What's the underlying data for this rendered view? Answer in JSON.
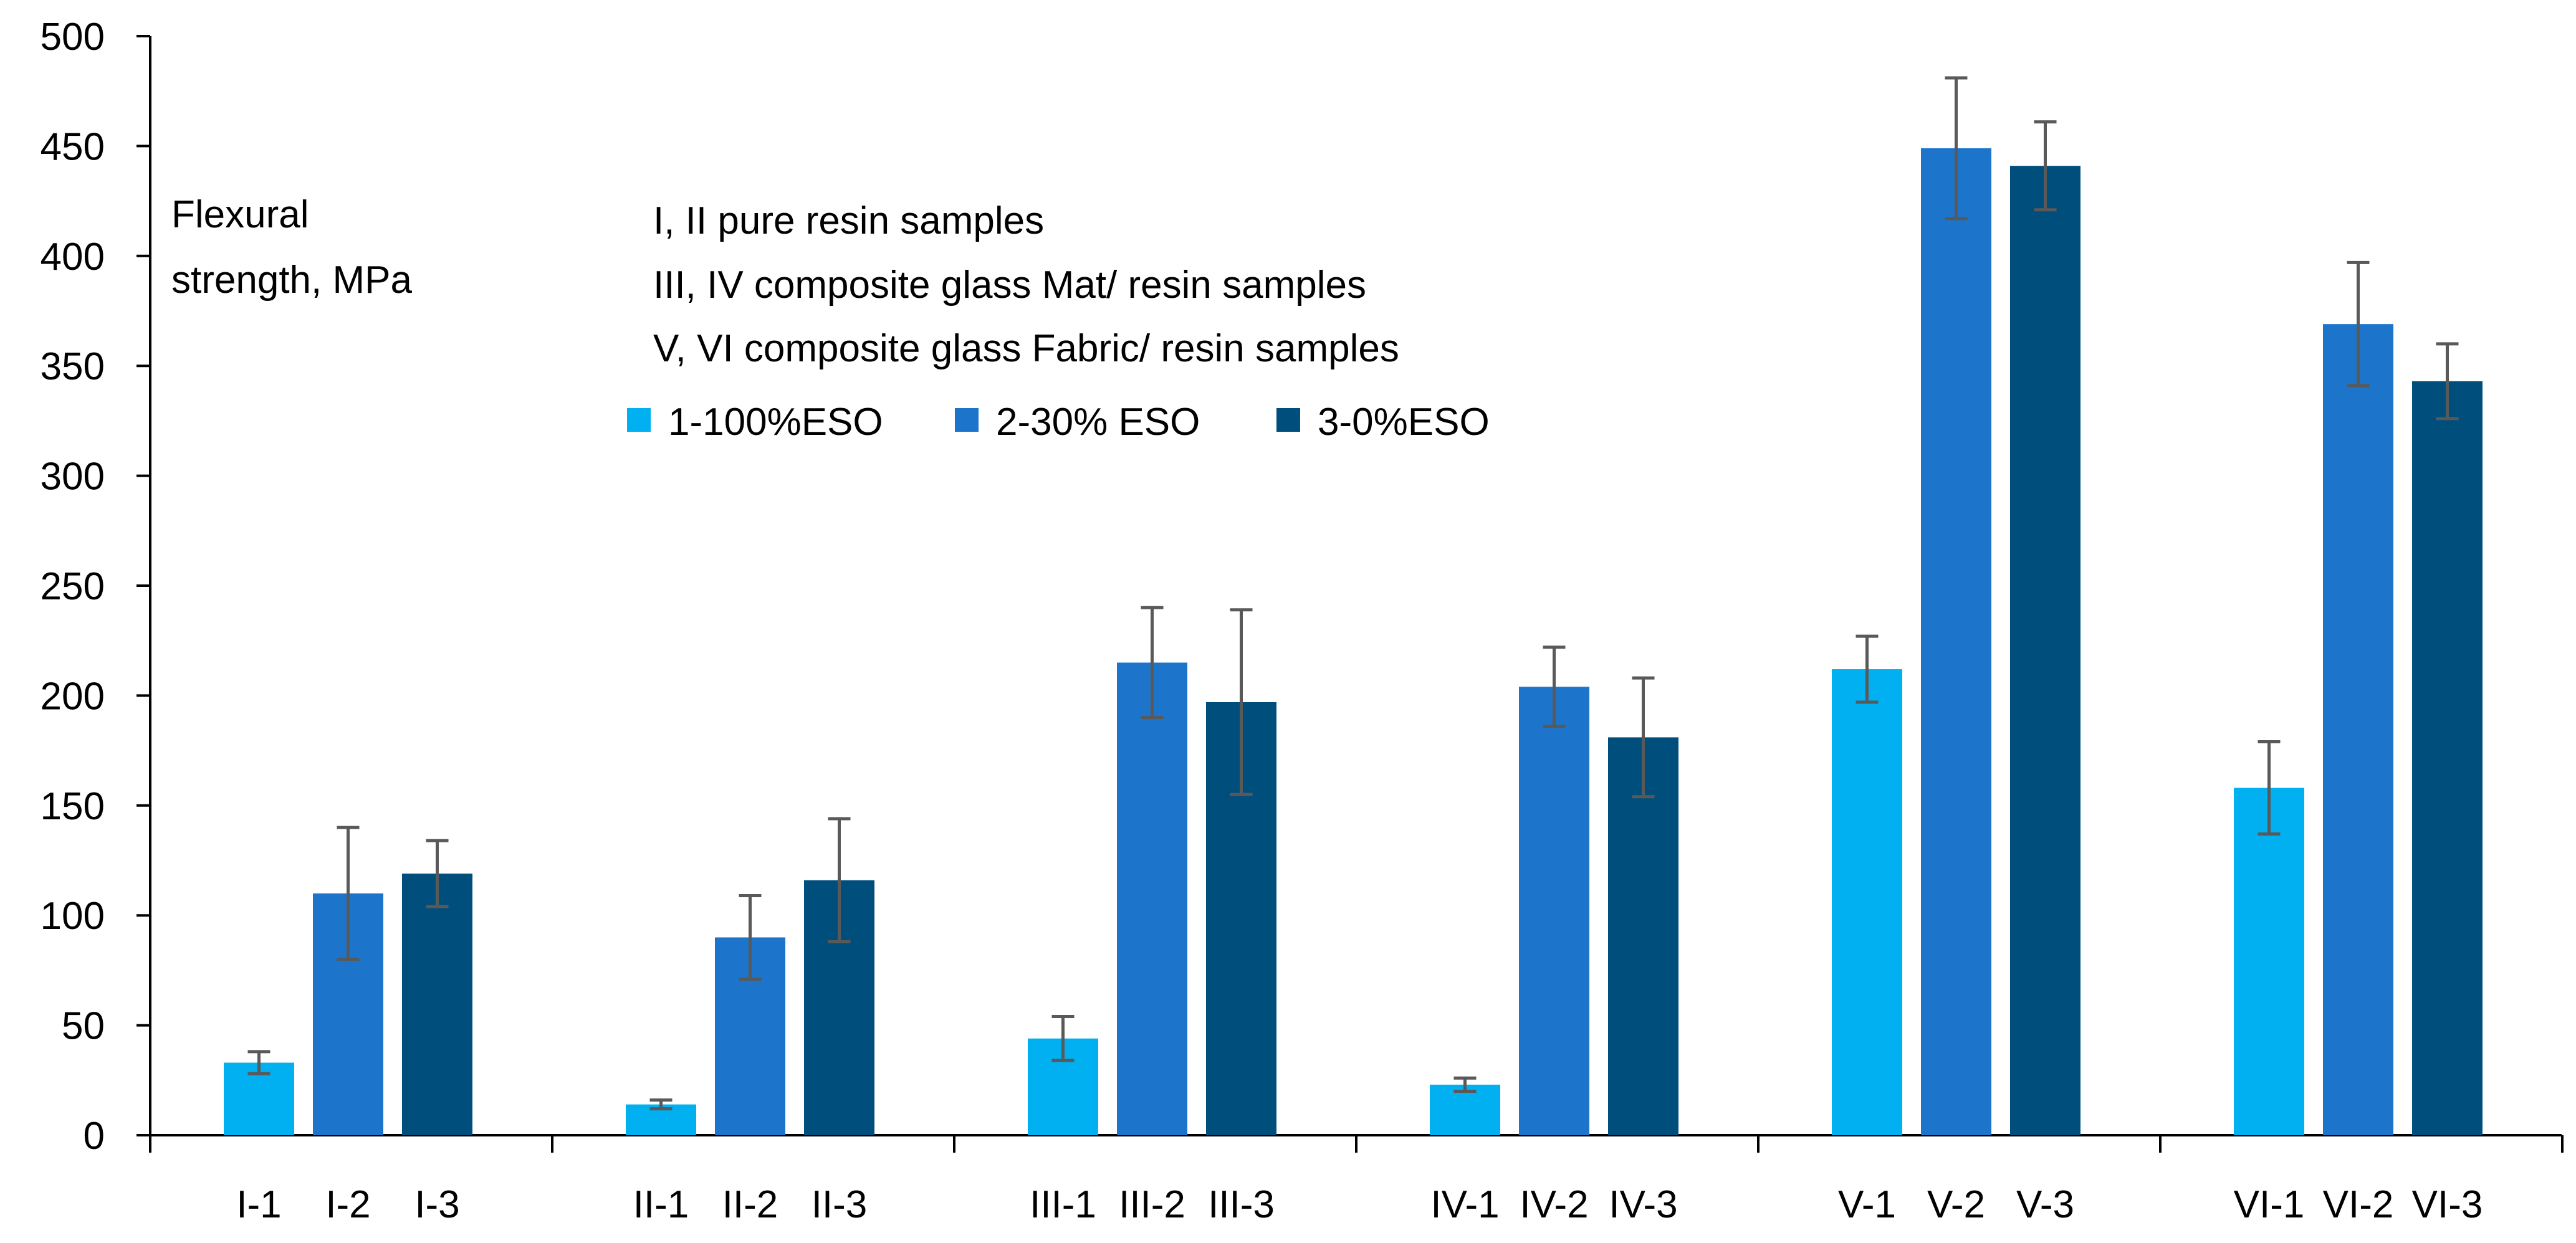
{
  "colors": {
    "series": [
      "#00B0F0",
      "#1C75CB",
      "#004E7C"
    ],
    "axis": "#000000",
    "error_bar": "#595959"
  },
  "chart_data": {
    "type": "bar",
    "title": "",
    "ylabel": "Flexural strength, MPa",
    "ylabel_lines": [
      "Flexural",
      "strength, MPa"
    ],
    "xlabel": "",
    "ylim": [
      0,
      500
    ],
    "ytick_step": 50,
    "yticks": [
      "0",
      "50",
      "100",
      "150",
      "200",
      "250",
      "300",
      "350",
      "400",
      "450",
      "500"
    ],
    "annotations": [
      "I, II pure resin samples",
      "III, IV composite glass Mat/ resin samples",
      "V, VI composite glass Fabric/ resin samples"
    ],
    "groups": [
      "I",
      "II",
      "III",
      "IV",
      "V",
      "VI"
    ],
    "legend": [
      "1-100%ESO",
      "2-30% ESO",
      "3-0%ESO"
    ],
    "series": [
      {
        "name": "1-100%ESO",
        "labels": [
          "I-1",
          "II-1",
          "III-1",
          "IV-1",
          "V-1",
          "VI-1"
        ],
        "values": [
          33,
          14,
          44,
          23,
          212,
          158
        ],
        "errors": [
          5,
          2,
          10,
          3,
          15,
          21
        ]
      },
      {
        "name": "2-30% ESO",
        "labels": [
          "I-2",
          "II-2",
          "III-2",
          "IV-2",
          "V-2",
          "VI-2"
        ],
        "values": [
          110,
          90,
          215,
          204,
          449,
          369
        ],
        "errors": [
          30,
          19,
          25,
          18,
          32,
          28
        ]
      },
      {
        "name": "3-0%ESO",
        "labels": [
          "I-3",
          "II-3",
          "III-3",
          "IV-3",
          "V-3",
          "VI-3"
        ],
        "values": [
          119,
          116,
          197,
          181,
          441,
          343
        ],
        "errors": [
          15,
          28,
          42,
          27,
          20,
          17
        ]
      }
    ]
  }
}
